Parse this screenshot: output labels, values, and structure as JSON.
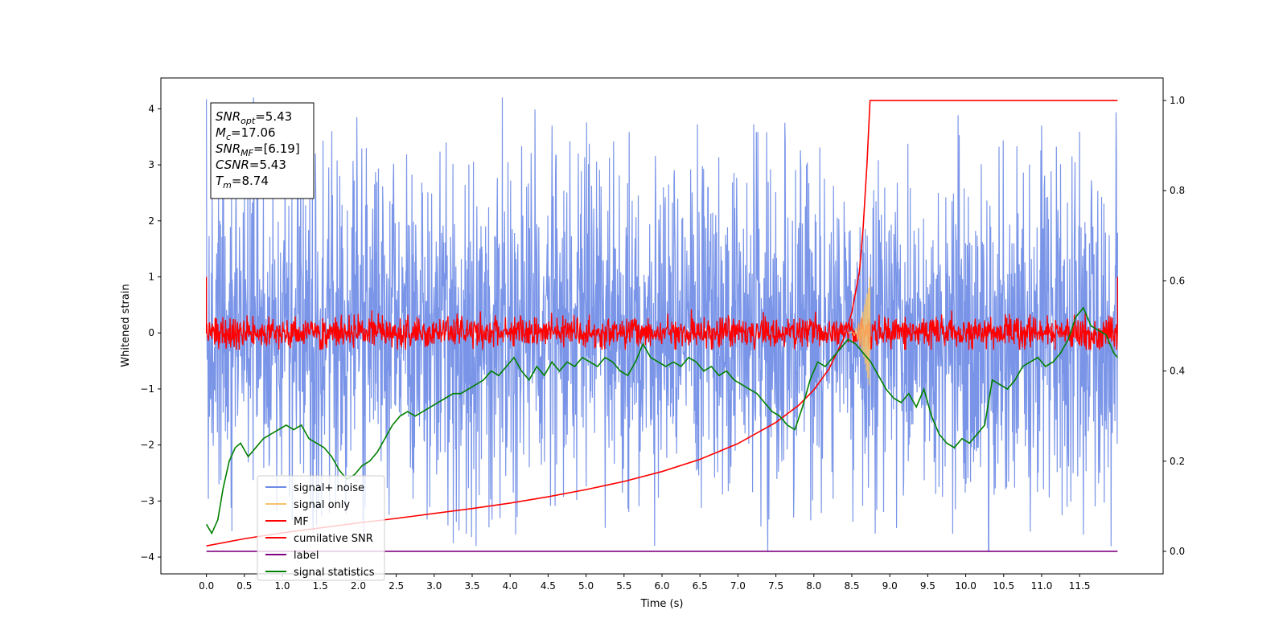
{
  "chart_data": {
    "type": "line",
    "title": "",
    "xlabel": "Time (s)",
    "ylabel_left": "Whitened strain",
    "ylabel_right": "",
    "xlim": [
      -0.6,
      12.6
    ],
    "ylim_left": [
      -4.3,
      4.55
    ],
    "ylim_right": [
      -0.05,
      1.05
    ],
    "x_ticks": [
      "0.0",
      "0.5",
      "1.0",
      "1.5",
      "2.0",
      "2.5",
      "3.0",
      "3.5",
      "4.0",
      "4.5",
      "5.0",
      "5.5",
      "6.0",
      "6.5",
      "7.0",
      "7.5",
      "8.0",
      "8.5",
      "9.0",
      "9.5",
      "10.0",
      "10.5",
      "11.0",
      "11.5"
    ],
    "y_ticks_left": [
      "4",
      "3",
      "2",
      "1",
      "0",
      "−1",
      "−2",
      "−3",
      "−4"
    ],
    "y_ticks_right": [
      "1.0",
      "0.8",
      "0.6",
      "0.4",
      "0.2",
      "0.0"
    ],
    "grid": false,
    "legend_position": "lower-left",
    "annotation": {
      "lines": [
        {
          "sym": "SNR",
          "sub": "opt",
          "val": "=5.43"
        },
        {
          "sym": "M",
          "sub": "c",
          "val": "=17.06"
        },
        {
          "sym": "SNR",
          "sub": "MF",
          "val": "=[6.19]"
        },
        {
          "sym": "CSNR",
          "sub": "",
          "val": "=5.43"
        },
        {
          "sym": "T",
          "sub": "m",
          "val": "=8.74"
        }
      ]
    },
    "series": [
      {
        "name": "signal+ noise",
        "color": "#6b8ae6",
        "axis": "left",
        "description_envelope": {
          "x_range": [
            0.0,
            12.0
          ],
          "typical_amplitude": 1.2,
          "offset": 0.5,
          "peaks_high": [
            [
              0.62,
              4.2
            ],
            [
              1.98,
              3.85
            ],
            [
              7.62,
              3.75
            ],
            [
              11.0,
              3.7
            ],
            [
              4.55,
              3.7
            ],
            [
              1.65,
              3.6
            ]
          ],
          "peaks_low": [
            [
              10.3,
              -3.9
            ],
            [
              5.9,
              -3.8
            ],
            [
              3.55,
              -3.8
            ],
            [
              3.25,
              -3.75
            ],
            [
              11.55,
              -3.6
            ]
          ]
        }
      },
      {
        "name": "signal only",
        "color": "#f5c26b",
        "axis": "left",
        "chirp": {
          "t_merger": 8.74,
          "t_start": 8.45,
          "max_amp": 1.05
        }
      },
      {
        "name": "MF",
        "color": "#ff0000",
        "axis": "left",
        "description_envelope": {
          "x_range": [
            0.0,
            12.0
          ],
          "typical_amplitude": 0.2,
          "edge_spike": 1.0,
          "peak_at": 8.74
        }
      },
      {
        "name": "cumilative SNR",
        "color": "#ff0000",
        "axis": "right",
        "x": [
          0.0,
          0.5,
          1.0,
          1.5,
          2.0,
          2.5,
          3.0,
          3.5,
          4.0,
          4.5,
          5.0,
          5.5,
          6.0,
          6.5,
          7.0,
          7.5,
          7.8,
          8.0,
          8.2,
          8.4,
          8.5,
          8.6,
          8.65,
          8.7,
          8.74,
          9.0,
          10.0,
          11.0,
          12.0
        ],
        "y": [
          0.012,
          0.028,
          0.041,
          0.052,
          0.063,
          0.073,
          0.084,
          0.095,
          0.107,
          0.121,
          0.137,
          0.155,
          0.177,
          0.204,
          0.239,
          0.286,
          0.324,
          0.358,
          0.405,
          0.474,
          0.53,
          0.62,
          0.72,
          0.86,
          1.0,
          1.0,
          1.0,
          1.0,
          1.0
        ]
      },
      {
        "name": "label",
        "color": "#800080",
        "axis": "right",
        "x": [
          0.0,
          12.0
        ],
        "y": [
          0.0,
          0.0
        ]
      },
      {
        "name": "signal statistics",
        "color": "#008000",
        "axis": "right",
        "x": [
          0.0,
          0.07,
          0.15,
          0.22,
          0.3,
          0.38,
          0.45,
          0.55,
          0.65,
          0.75,
          0.85,
          0.95,
          1.05,
          1.15,
          1.25,
          1.35,
          1.45,
          1.55,
          1.65,
          1.75,
          1.85,
          1.95,
          2.05,
          2.15,
          2.25,
          2.35,
          2.45,
          2.55,
          2.65,
          2.75,
          2.85,
          2.95,
          3.05,
          3.15,
          3.25,
          3.35,
          3.45,
          3.55,
          3.65,
          3.75,
          3.85,
          3.95,
          4.05,
          4.15,
          4.25,
          4.35,
          4.45,
          4.55,
          4.65,
          4.75,
          4.85,
          4.95,
          5.05,
          5.15,
          5.25,
          5.35,
          5.45,
          5.55,
          5.65,
          5.75,
          5.85,
          5.95,
          6.05,
          6.15,
          6.25,
          6.35,
          6.45,
          6.55,
          6.65,
          6.75,
          6.85,
          6.95,
          7.05,
          7.15,
          7.25,
          7.35,
          7.45,
          7.55,
          7.65,
          7.75,
          7.85,
          7.95,
          8.05,
          8.15,
          8.25,
          8.35,
          8.45,
          8.55,
          8.65,
          8.75,
          8.85,
          8.95,
          9.05,
          9.15,
          9.25,
          9.35,
          9.45,
          9.55,
          9.65,
          9.75,
          9.85,
          9.95,
          10.05,
          10.15,
          10.25,
          10.35,
          10.45,
          10.55,
          10.65,
          10.75,
          10.85,
          10.95,
          11.05,
          11.15,
          11.25,
          11.35,
          11.45,
          11.55,
          11.65,
          11.75,
          11.85,
          11.95,
          12.0
        ],
        "y": [
          0.06,
          0.04,
          0.07,
          0.14,
          0.2,
          0.23,
          0.24,
          0.21,
          0.23,
          0.25,
          0.26,
          0.27,
          0.28,
          0.27,
          0.28,
          0.25,
          0.24,
          0.23,
          0.21,
          0.18,
          0.16,
          0.17,
          0.19,
          0.2,
          0.22,
          0.25,
          0.28,
          0.3,
          0.31,
          0.3,
          0.31,
          0.32,
          0.33,
          0.34,
          0.35,
          0.35,
          0.36,
          0.37,
          0.38,
          0.4,
          0.39,
          0.41,
          0.43,
          0.4,
          0.38,
          0.41,
          0.39,
          0.42,
          0.4,
          0.42,
          0.41,
          0.43,
          0.42,
          0.41,
          0.43,
          0.42,
          0.4,
          0.39,
          0.42,
          0.46,
          0.43,
          0.42,
          0.41,
          0.42,
          0.41,
          0.43,
          0.42,
          0.4,
          0.41,
          0.39,
          0.4,
          0.38,
          0.37,
          0.36,
          0.35,
          0.33,
          0.31,
          0.3,
          0.28,
          0.27,
          0.32,
          0.38,
          0.42,
          0.41,
          0.43,
          0.45,
          0.47,
          0.46,
          0.44,
          0.42,
          0.39,
          0.36,
          0.34,
          0.33,
          0.35,
          0.32,
          0.36,
          0.3,
          0.26,
          0.24,
          0.23,
          0.25,
          0.24,
          0.26,
          0.28,
          0.38,
          0.37,
          0.36,
          0.38,
          0.41,
          0.42,
          0.43,
          0.41,
          0.42,
          0.44,
          0.47,
          0.52,
          0.54,
          0.5,
          0.49,
          0.48,
          0.44,
          0.43
        ]
      }
    ]
  }
}
